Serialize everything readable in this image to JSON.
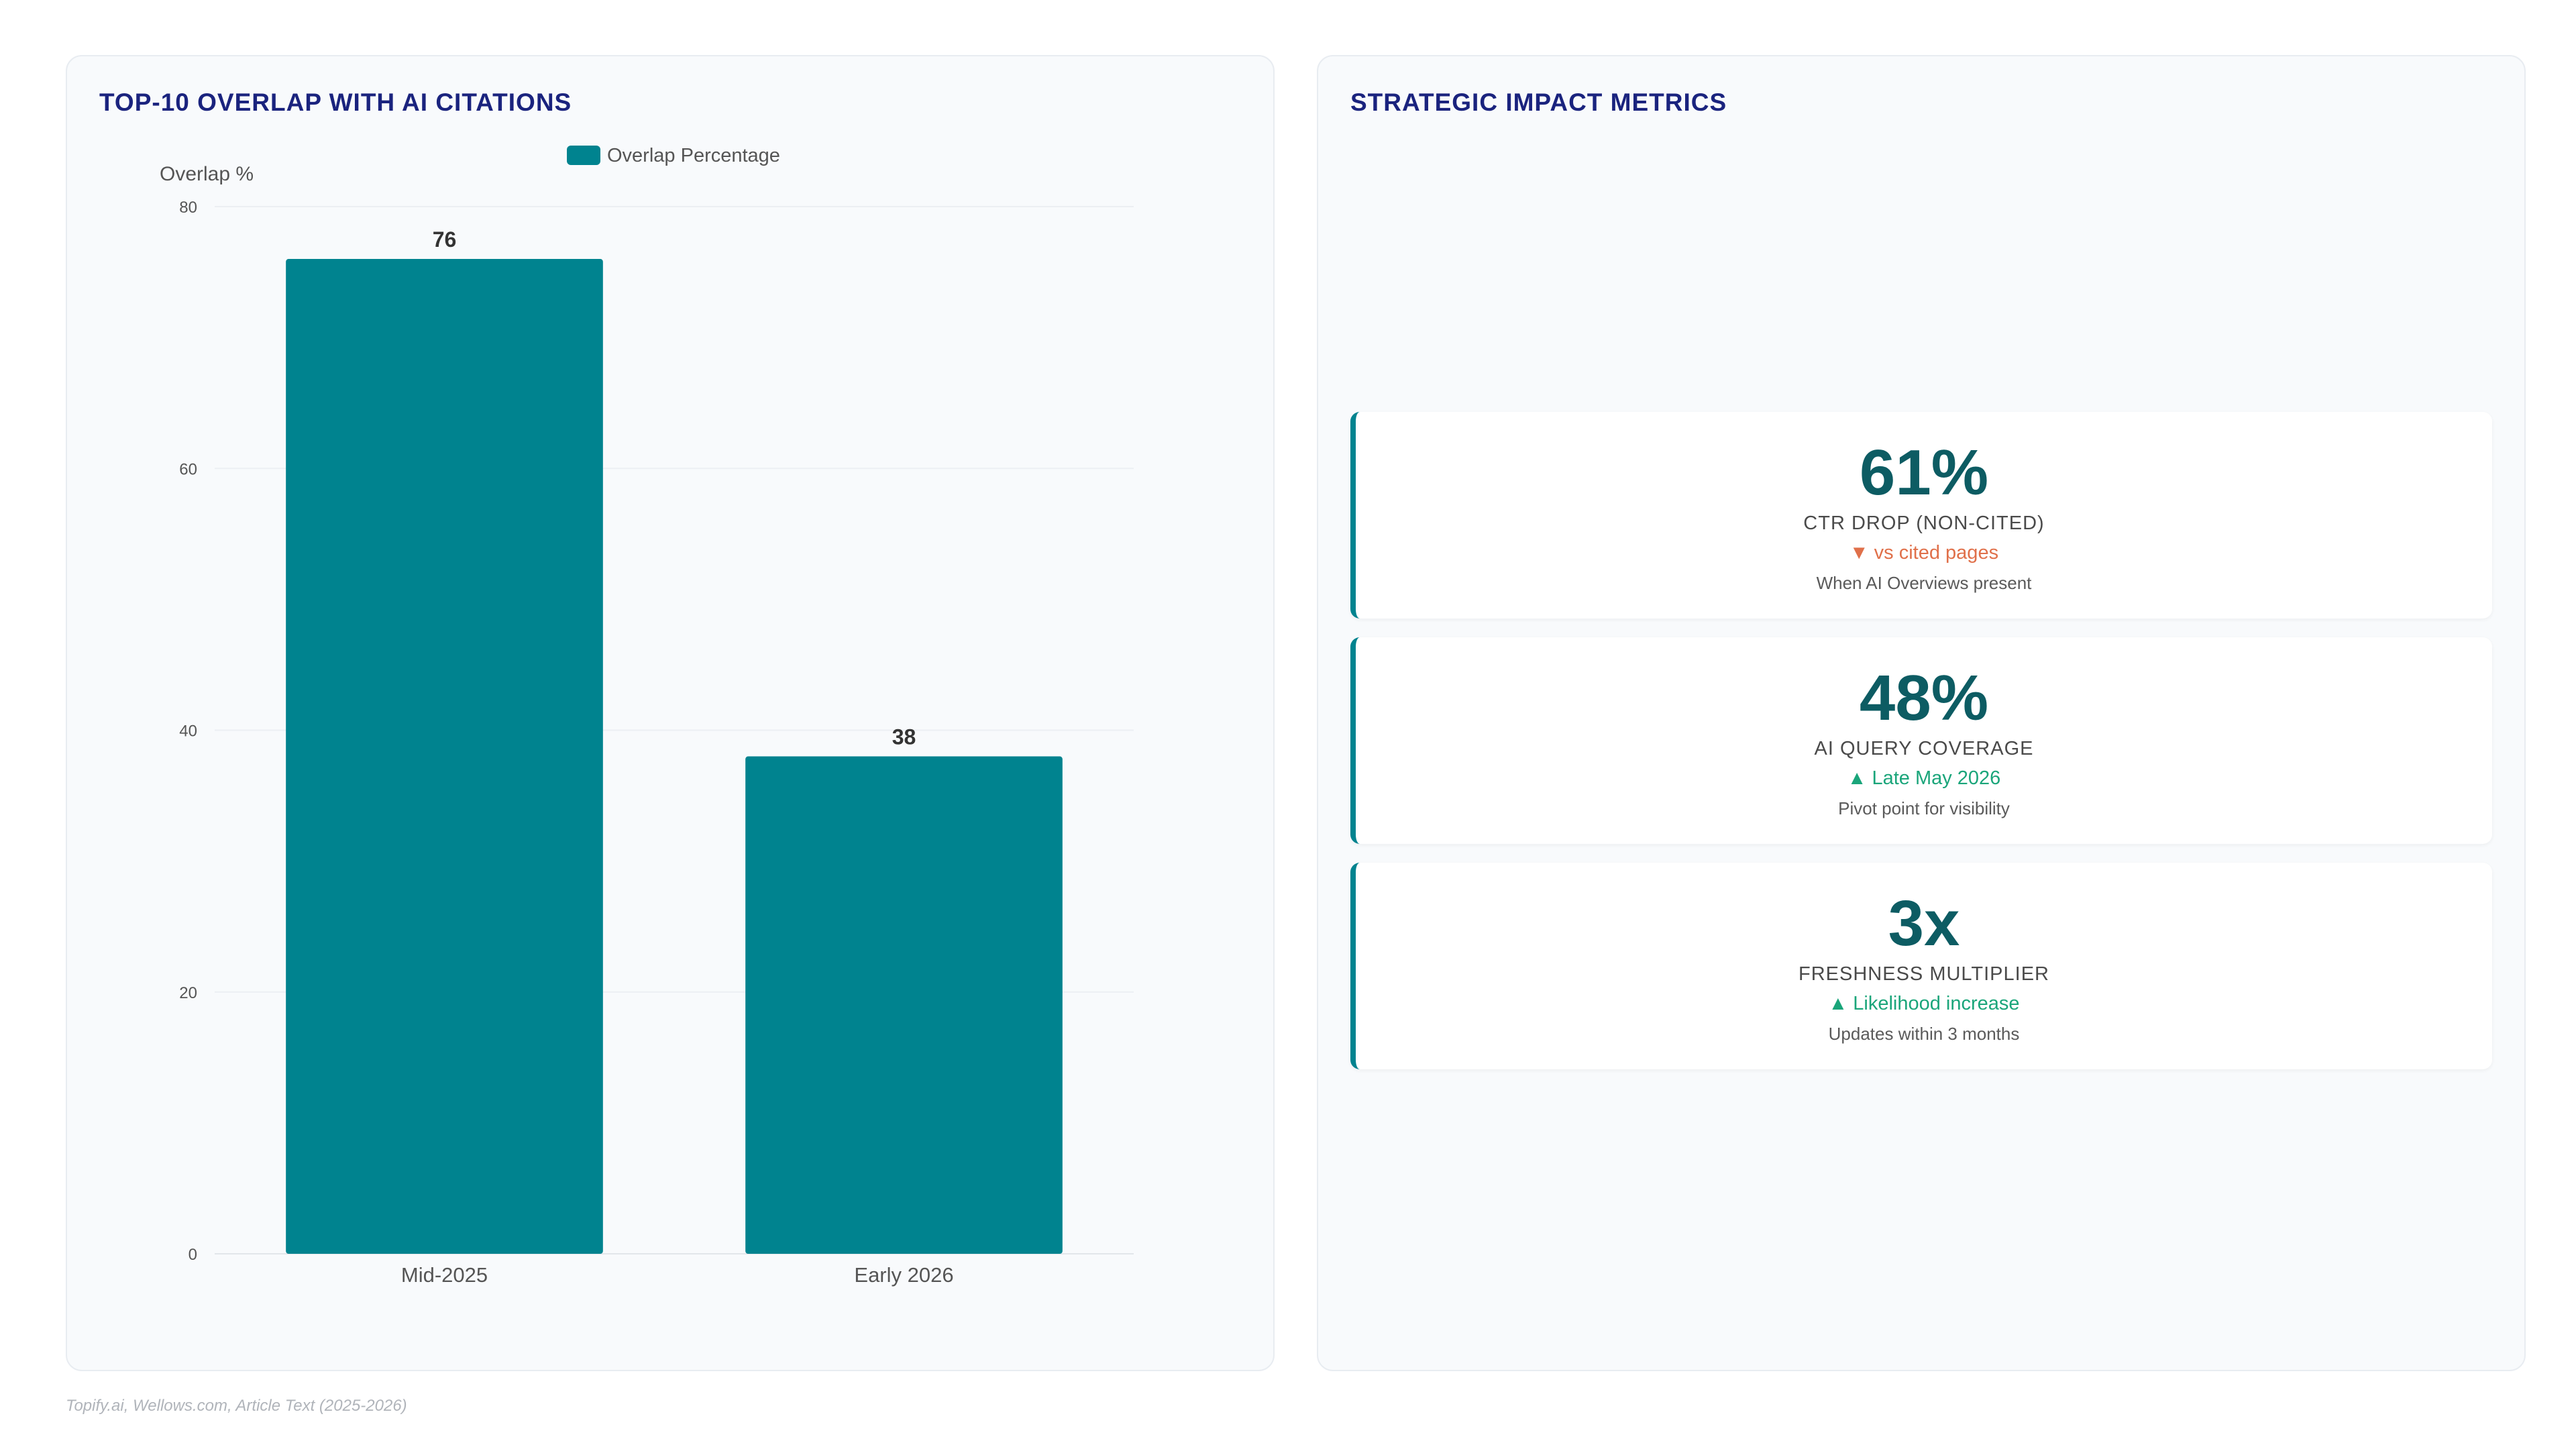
{
  "panels": {
    "chart_title": "TOP-10 OVERLAP WITH AI CITATIONS",
    "metrics_title": "STRATEGIC IMPACT METRICS"
  },
  "chart_data": {
    "type": "bar",
    "categories": [
      "Mid-2025",
      "Early 2026"
    ],
    "series": [
      {
        "name": "Overlap Percentage",
        "values": [
          76,
          38
        ],
        "color": "#00838f"
      }
    ],
    "ylabel": "Overlap %",
    "xlabel": "",
    "ylim": [
      0,
      80
    ],
    "yticks": [
      0,
      20,
      40,
      60,
      80
    ],
    "legend": "top-center",
    "grid": true,
    "data_labels": [
      "76",
      "38"
    ]
  },
  "metrics": [
    {
      "value": "61%",
      "label": "CTR DROP (NON-CITED)",
      "trend": "▼ vs cited pages",
      "trend_direction": "down",
      "note": "When AI Overviews present"
    },
    {
      "value": "48%",
      "label": "AI QUERY COVERAGE",
      "trend": "▲ Late May 2026",
      "trend_direction": "up",
      "note": "Pivot point for visibility"
    },
    {
      "value": "3x",
      "label": "FRESHNESS MULTIPLIER",
      "trend": "▲ Likelihood increase",
      "trend_direction": "up",
      "note": "Updates within 3 months"
    }
  ],
  "source": "Topify.ai, Wellows.com, Article Text (2025-2026)"
}
